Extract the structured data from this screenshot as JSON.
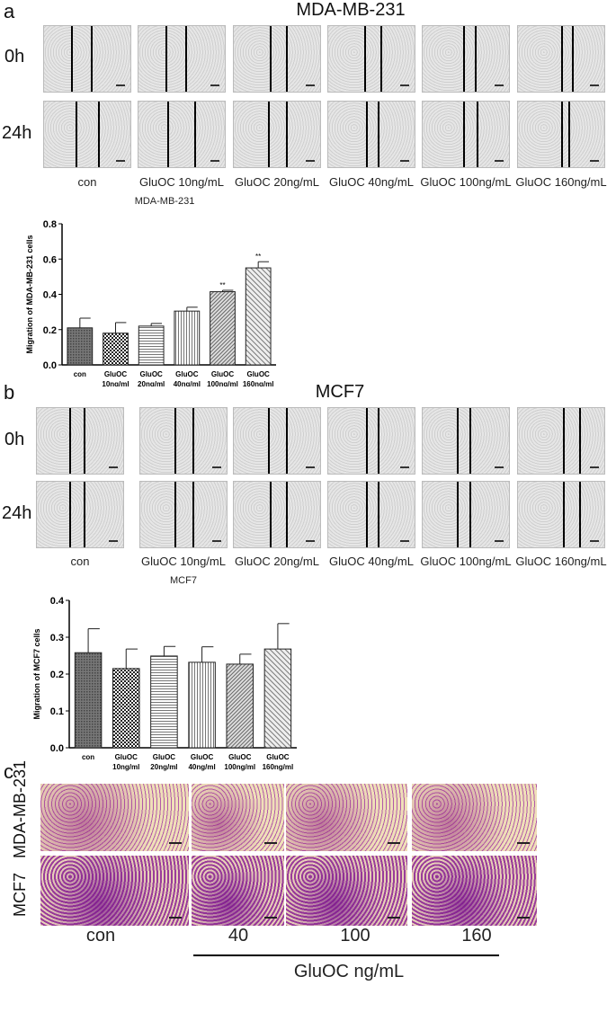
{
  "panel_a": {
    "letter": "a",
    "title": "MDA-MB-231",
    "rows": [
      "0h",
      "24h"
    ],
    "columns": [
      "con",
      "GluOC 10ng/mL",
      "GluOC 20ng/mL",
      "GluOC 40ng/mL",
      "GluOC 100ng/mL",
      "GluOC 160ng/mL"
    ],
    "chart_caption": "MDA-MB-231"
  },
  "panel_b": {
    "letter": "b",
    "title": "MCF7",
    "rows": [
      "0h",
      "24h"
    ],
    "columns": [
      "con",
      "GluOC 10ng/mL",
      "GluOC 20ng/mL",
      "GluOC 40ng/mL",
      "GluOC 100ng/mL",
      "GluOC 160ng/mL"
    ],
    "chart_caption": "MCF7"
  },
  "panel_c": {
    "letter": "c",
    "rows": [
      "MDA-MB-231",
      "MCF7"
    ],
    "columns": [
      "con",
      "40",
      "100",
      "160"
    ],
    "xlabel": "GluOC ng/mL"
  },
  "chart_data": [
    {
      "type": "bar",
      "ylabel": "Migration of MDA-MB-231 cells",
      "categories": [
        [
          "con",
          ""
        ],
        [
          "GluOC",
          "10ng/ml"
        ],
        [
          "GluOC",
          "20ng/ml"
        ],
        [
          "GluOC",
          "40ng/ml"
        ],
        [
          "GluOC",
          "100ng/ml"
        ],
        [
          "GluOC",
          "160ng/ml"
        ]
      ],
      "values": [
        0.21,
        0.18,
        0.22,
        0.305,
        0.415,
        0.55
      ],
      "errors": [
        0.055,
        0.06,
        0.015,
        0.022,
        0.008,
        0.035
      ],
      "annotations": [
        "",
        "",
        "",
        "",
        "**",
        "**"
      ],
      "ylim": [
        0,
        0.8
      ],
      "yticks": [
        "0.0",
        "0.2",
        "0.4",
        "0.6",
        "0.8"
      ]
    },
    {
      "type": "bar",
      "ylabel": "Migration of MCF7 cells",
      "categories": [
        [
          "con",
          ""
        ],
        [
          "GluOC",
          "10ng/ml"
        ],
        [
          "GluOC",
          "20ng/ml"
        ],
        [
          "GluOC",
          "40ng/ml"
        ],
        [
          "GluOC",
          "100ng/ml"
        ],
        [
          "GluOC",
          "160ng/ml"
        ]
      ],
      "values": [
        0.258,
        0.215,
        0.249,
        0.232,
        0.227,
        0.268
      ],
      "errors": [
        0.065,
        0.053,
        0.026,
        0.042,
        0.027,
        0.069
      ],
      "annotations": [
        "",
        "",
        "",
        "",
        "",
        ""
      ],
      "ylim": [
        0,
        0.4
      ],
      "yticks": [
        "0.0",
        "0.1",
        "0.2",
        "0.3",
        "0.4"
      ]
    }
  ]
}
